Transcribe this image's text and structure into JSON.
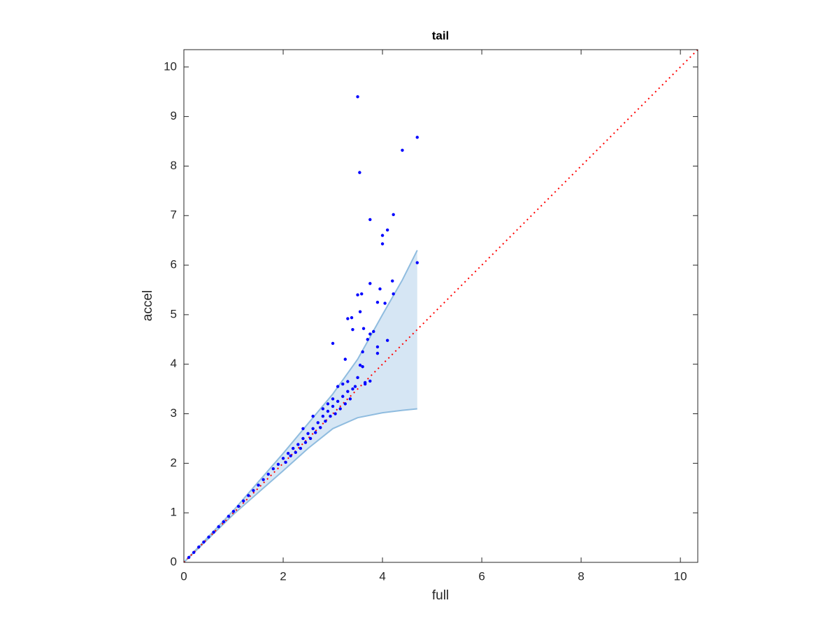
{
  "chart_data": {
    "type": "scatter",
    "title": "tail",
    "x_label": "full",
    "y_label": "accel",
    "xlim": [
      0,
      10.35
    ],
    "ylim": [
      0,
      10.35
    ],
    "xticks": [
      0,
      2,
      4,
      6,
      8,
      10
    ],
    "yticks": [
      0,
      1,
      2,
      3,
      4,
      5,
      6,
      7,
      8,
      9,
      10
    ],
    "series": [
      {
        "type": "band",
        "color": "#8fbcdf",
        "fill": "#d6e6f4",
        "x": [
          0,
          1,
          2,
          2.5,
          3,
          3.5,
          4,
          4.4,
          4.7
        ],
        "upper": [
          0,
          1.05,
          2.2,
          2.8,
          3.4,
          4.1,
          5.0,
          5.7,
          6.3
        ],
        "lower": [
          0,
          0.97,
          1.85,
          2.3,
          2.7,
          2.92,
          3.02,
          3.07,
          3.1
        ]
      },
      {
        "type": "line",
        "color": "#ff0000",
        "x": [
          0,
          10.35
        ],
        "y": [
          0,
          10.35
        ]
      },
      {
        "type": "scatter",
        "color": "#0000ff",
        "x": [
          0.1,
          0.2,
          0.3,
          0.4,
          0.5,
          0.6,
          0.7,
          0.8,
          0.9,
          1.0,
          1.1,
          1.2,
          1.3,
          1.4,
          1.5,
          1.6,
          1.7,
          1.8,
          1.9,
          2.0,
          2.05,
          2.1,
          2.15,
          2.2,
          2.25,
          2.3,
          2.35,
          2.4,
          2.45,
          2.5,
          2.55,
          2.6,
          2.65,
          2.7,
          2.75,
          2.8,
          2.85,
          2.9,
          2.95,
          3.0,
          3.05,
          3.1,
          3.15,
          3.2,
          3.25,
          3.3,
          3.35,
          3.0,
          2.9,
          3.1,
          3.2,
          3.3,
          3.4,
          2.8,
          2.6,
          2.4,
          3.45,
          3.5,
          4.7,
          4.4,
          3.54,
          3.75,
          4.22,
          4.1,
          4.0,
          4.0,
          4.7,
          3.75,
          3.95,
          4.2,
          3.5,
          3.58,
          4.22,
          3.9,
          4.05,
          3.3,
          3.38,
          3.4,
          3.55,
          3.62,
          3.75,
          3.82,
          4.1,
          3.0,
          3.7,
          3.9,
          3.9,
          3.25,
          3.6,
          3.55,
          3.6,
          3.65,
          3.75,
          3.65,
          3.5
        ],
        "y": [
          0.1,
          0.2,
          0.31,
          0.41,
          0.51,
          0.61,
          0.72,
          0.82,
          0.93,
          1.03,
          1.13,
          1.24,
          1.35,
          1.45,
          1.56,
          1.67,
          1.78,
          1.89,
          1.98,
          2.1,
          2.02,
          2.2,
          2.15,
          2.3,
          2.22,
          2.38,
          2.3,
          2.5,
          2.42,
          2.6,
          2.5,
          2.7,
          2.62,
          2.82,
          2.72,
          2.95,
          2.85,
          3.05,
          2.95,
          3.15,
          3.0,
          3.25,
          3.1,
          3.35,
          3.2,
          3.45,
          3.3,
          3.3,
          3.2,
          3.55,
          3.6,
          3.65,
          3.5,
          3.1,
          2.95,
          2.7,
          3.55,
          9.4,
          8.58,
          8.32,
          7.87,
          6.92,
          7.02,
          6.71,
          6.6,
          6.43,
          6.05,
          5.63,
          5.52,
          5.68,
          5.4,
          5.42,
          5.42,
          5.25,
          5.23,
          4.92,
          4.94,
          4.7,
          5.06,
          4.72,
          4.61,
          4.66,
          4.48,
          4.42,
          4.5,
          4.35,
          4.22,
          4.1,
          4.25,
          3.98,
          3.95,
          3.63,
          3.66,
          3.6,
          3.73
        ]
      }
    ]
  }
}
